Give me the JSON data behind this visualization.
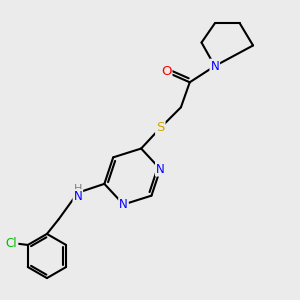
{
  "background_color": "#ebebeb",
  "atom_colors": {
    "C": "#000000",
    "N": "#0000ff",
    "O": "#ff0000",
    "S": "#ccaa00",
    "Cl": "#00bb00",
    "H": "#808080"
  },
  "bond_color": "#000000",
  "bond_width": 1.5
}
